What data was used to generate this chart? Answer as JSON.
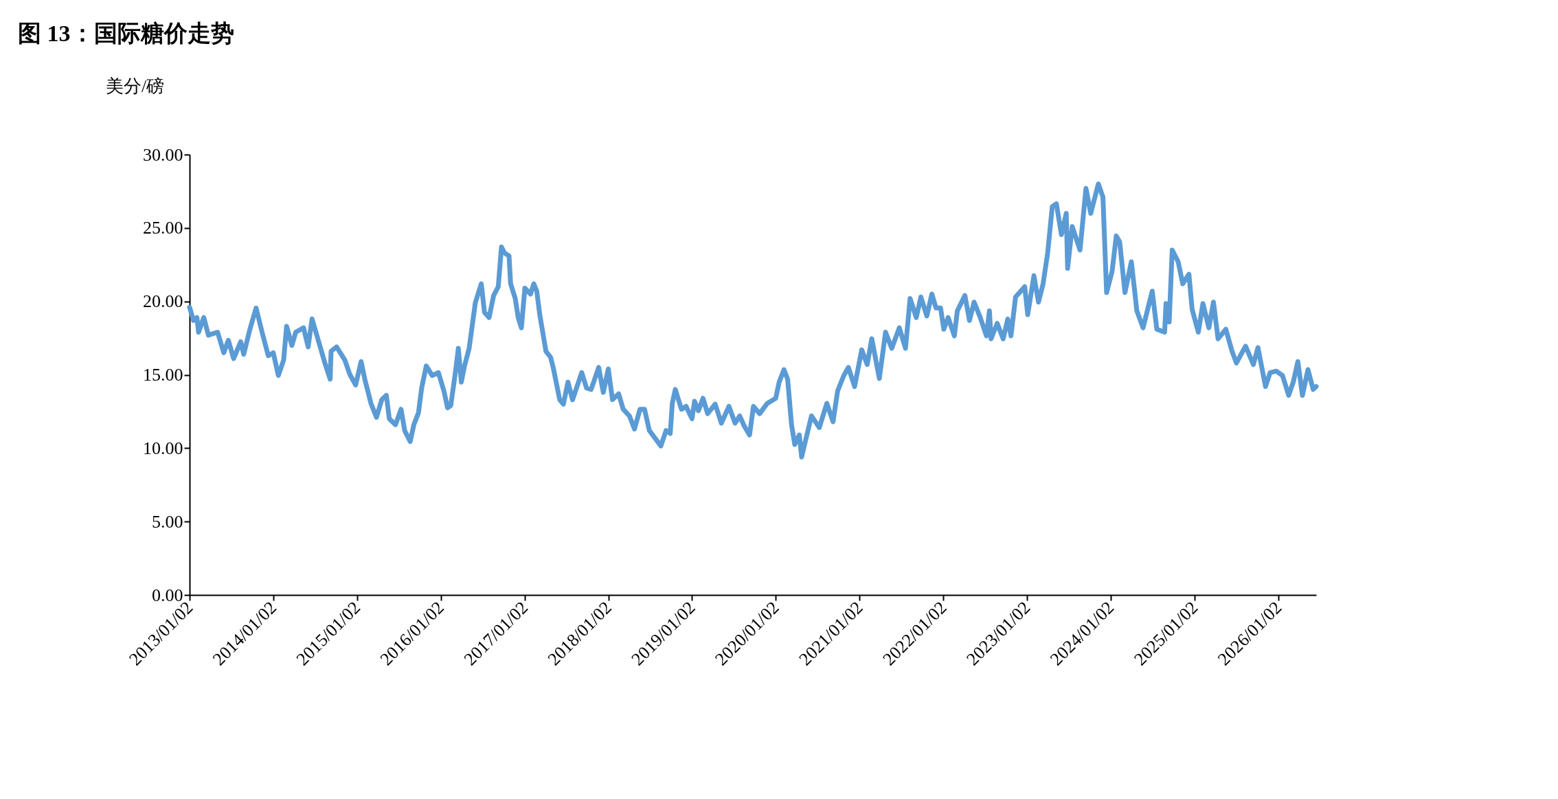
{
  "chart_data": {
    "type": "line",
    "title": "图 13：国际糖价走势",
    "ylabel": "美分/磅",
    "x": [
      "2013-01-02",
      "2013-01-19",
      "2013-02-03",
      "2013-02-10",
      "2013-03-05",
      "2013-03-25",
      "2013-05-04",
      "2013-05-31",
      "2013-06-20",
      "2013-07-13",
      "2013-08-13",
      "2013-08-26",
      "2013-09-22",
      "2013-10-19",
      "2013-11-14",
      "2013-12-11",
      "2014-01-02",
      "2014-01-24",
      "2014-02-16",
      "2014-03-01",
      "2014-03-24",
      "2014-04-10",
      "2014-05-14",
      "2014-06-03",
      "2014-06-20",
      "2014-07-19",
      "2014-08-15",
      "2014-09-07",
      "2014-09-11",
      "2014-10-05",
      "2014-11-10",
      "2014-12-01",
      "2014-12-27",
      "2015-01-20",
      "2015-02-05",
      "2015-03-04",
      "2015-03-28",
      "2015-04-20",
      "2015-05-10",
      "2015-05-23",
      "2015-06-19",
      "2015-07-13",
      "2015-07-29",
      "2015-08-22",
      "2015-09-07",
      "2015-09-27",
      "2015-10-11",
      "2015-10-31",
      "2015-11-26",
      "2015-12-23",
      "2016-01-16",
      "2016-02-01",
      "2016-02-15",
      "2016-03-06",
      "2016-03-19",
      "2016-04-01",
      "2016-04-15",
      "2016-05-05",
      "2016-06-01",
      "2016-06-27",
      "2016-07-11",
      "2016-07-31",
      "2016-08-20",
      "2016-09-09",
      "2016-09-23",
      "2016-10-06",
      "2016-10-26",
      "2016-11-02",
      "2016-11-22",
      "2016-12-05",
      "2016-12-19",
      "2017-01-03",
      "2017-01-28",
      "2017-02-11",
      "2017-02-24",
      "2017-03-09",
      "2017-03-22",
      "2017-04-05",
      "2017-04-25",
      "2017-05-08",
      "2017-06-04",
      "2017-06-20",
      "2017-07-10",
      "2017-07-30",
      "2017-09-08",
      "2017-09-29",
      "2017-10-19",
      "2017-11-21",
      "2017-12-11",
      "2018-01-02",
      "2018-01-20",
      "2018-02-16",
      "2018-03-08",
      "2018-04-04",
      "2018-04-26",
      "2018-05-20",
      "2018-06-09",
      "2018-06-30",
      "2018-07-26",
      "2018-08-19",
      "2018-09-11",
      "2018-09-29",
      "2018-10-08",
      "2018-10-21",
      "2018-11-17",
      "2018-12-07",
      "2019-01-02",
      "2019-01-13",
      "2019-01-30",
      "2019-02-19",
      "2019-03-11",
      "2019-04-13",
      "2019-05-10",
      "2019-06-12",
      "2019-07-09",
      "2019-07-29",
      "2019-08-18",
      "2019-09-10",
      "2019-09-27",
      "2019-10-24",
      "2019-11-26",
      "2020-01-02",
      "2020-01-17",
      "2020-02-07",
      "2020-02-23",
      "2020-03-11",
      "2020-03-25",
      "2020-04-14",
      "2020-04-24",
      "2020-05-10",
      "2020-06-06",
      "2020-07-10",
      "2020-08-12",
      "2020-09-08",
      "2020-09-28",
      "2020-10-25",
      "2020-11-14",
      "2020-12-11",
      "2021-01-11",
      "2021-02-04",
      "2021-02-24",
      "2021-03-29",
      "2021-04-25",
      "2021-05-22",
      "2021-06-24",
      "2021-07-21",
      "2021-08-10",
      "2021-09-06",
      "2021-09-26",
      "2021-10-22",
      "2021-11-13",
      "2021-12-01",
      "2021-12-21",
      "2022-01-04",
      "2022-01-23",
      "2022-02-19",
      "2022-03-04",
      "2022-04-06",
      "2022-04-26",
      "2022-05-16",
      "2022-06-12",
      "2022-07-09",
      "2022-07-22",
      "2022-07-29",
      "2022-08-25",
      "2022-09-20",
      "2022-10-10",
      "2022-10-24",
      "2022-11-13",
      "2022-12-23",
      "2023-01-05",
      "2023-02-01",
      "2023-02-21",
      "2023-03-13",
      "2023-04-02",
      "2023-04-22",
      "2023-05-10",
      "2023-06-01",
      "2023-06-22",
      "2023-06-28",
      "2023-07-18",
      "2023-08-21",
      "2023-09-16",
      "2023-10-07",
      "2023-11-09",
      "2023-11-29",
      "2023-12-15",
      "2024-01-08",
      "2024-01-26",
      "2024-02-10",
      "2024-03-04",
      "2024-04-01",
      "2024-04-25",
      "2024-05-22",
      "2024-07-01",
      "2024-07-21",
      "2024-08-24",
      "2024-08-30",
      "2024-09-13",
      "2024-09-26",
      "2024-10-22",
      "2024-11-11",
      "2024-12-08",
      "2024-12-22",
      "2025-01-18",
      "2025-02-07",
      "2025-03-05",
      "2025-03-25",
      "2025-04-14",
      "2025-05-18",
      "2025-06-14",
      "2025-07-03",
      "2025-08-12",
      "2025-09-15",
      "2025-10-05",
      "2025-11-07",
      "2025-11-27",
      "2025-12-24",
      "2026-01-20",
      "2026-02-16",
      "2026-03-08",
      "2026-03-28",
      "2026-04-17",
      "2026-05-11",
      "2026-06-03",
      "2026-06-16"
    ],
    "series": [
      {
        "color": "#5b9bd5",
        "values": [
          19.6,
          18.7,
          18.9,
          17.9,
          18.9,
          17.7,
          17.9,
          16.5,
          17.35,
          16.1,
          17.25,
          16.4,
          18.1,
          19.55,
          17.9,
          16.3,
          16.5,
          14.95,
          16.0,
          18.3,
          17.0,
          17.9,
          18.2,
          16.9,
          18.8,
          17.25,
          15.8,
          14.7,
          16.6,
          16.9,
          16.0,
          15.05,
          14.3,
          15.9,
          14.7,
          13.05,
          12.1,
          13.3,
          13.6,
          12.0,
          11.6,
          12.65,
          11.2,
          10.45,
          11.6,
          12.4,
          14.1,
          15.6,
          14.95,
          15.15,
          13.9,
          12.75,
          12.9,
          15.15,
          16.8,
          14.5,
          15.6,
          16.8,
          19.9,
          21.2,
          19.25,
          18.9,
          20.4,
          21.0,
          23.7,
          23.3,
          23.1,
          21.2,
          20.2,
          18.9,
          18.2,
          20.9,
          20.5,
          21.2,
          20.7,
          19.1,
          17.9,
          16.6,
          16.2,
          15.4,
          13.3,
          13.0,
          14.5,
          13.3,
          15.15,
          14.1,
          14.0,
          15.5,
          13.8,
          15.4,
          13.3,
          13.7,
          12.65,
          12.2,
          11.3,
          12.65,
          12.65,
          11.2,
          10.65,
          10.15,
          11.2,
          11.0,
          13.05,
          14.0,
          12.65,
          12.85,
          12.0,
          13.2,
          12.55,
          13.4,
          12.35,
          13.0,
          11.7,
          12.85,
          11.7,
          12.2,
          11.5,
          10.9,
          12.85,
          12.35,
          13.05,
          13.4,
          14.5,
          15.35,
          14.7,
          11.6,
          10.25,
          10.9,
          9.4,
          10.45,
          12.2,
          11.4,
          13.05,
          11.8,
          13.9,
          14.95,
          15.5,
          14.2,
          16.7,
          15.7,
          17.45,
          14.75,
          17.9,
          16.8,
          18.2,
          16.8,
          20.2,
          18.9,
          20.3,
          19.0,
          20.5,
          19.55,
          19.55,
          18.1,
          18.9,
          17.65,
          19.35,
          20.4,
          18.7,
          19.95,
          18.9,
          17.65,
          19.35,
          17.45,
          18.5,
          17.45,
          18.8,
          17.65,
          20.3,
          21.0,
          19.1,
          21.75,
          19.95,
          21.2,
          23.3,
          26.45,
          26.65,
          24.55,
          26.0,
          22.25,
          25.1,
          23.5,
          27.7,
          26.0,
          28.0,
          27.1,
          20.6,
          22.05,
          24.45,
          24.05,
          20.6,
          22.7,
          19.35,
          18.2,
          20.7,
          18.1,
          17.9,
          19.85,
          18.6,
          23.5,
          22.7,
          21.2,
          21.85,
          19.45,
          17.9,
          19.85,
          18.2,
          19.95,
          17.45,
          18.1,
          16.6,
          15.8,
          16.95,
          15.7,
          16.85,
          14.2,
          15.15,
          15.25,
          14.95,
          13.6,
          14.5,
          15.9,
          13.6,
          15.35,
          14.0,
          14.2
        ]
      }
    ],
    "xlim": [
      "2013-01-02",
      "2026-06-16"
    ],
    "xticks": [
      {
        "value": "2013-01-02",
        "label": "2013/01/02"
      },
      {
        "value": "2014-01-02",
        "label": "2014/01/02"
      },
      {
        "value": "2015-01-02",
        "label": "2015/01/02"
      },
      {
        "value": "2016-01-02",
        "label": "2016/01/02"
      },
      {
        "value": "2017-01-02",
        "label": "2017/01/02"
      },
      {
        "value": "2018-01-02",
        "label": "2018/01/02"
      },
      {
        "value": "2019-01-02",
        "label": "2019/01/02"
      },
      {
        "value": "2020-01-02",
        "label": "2020/01/02"
      },
      {
        "value": "2021-01-02",
        "label": "2021/01/02"
      },
      {
        "value": "2022-01-02",
        "label": "2022/01/02"
      },
      {
        "value": "2023-01-02",
        "label": "2023/01/02"
      },
      {
        "value": "2024-01-02",
        "label": "2024/01/02"
      },
      {
        "value": "2025-01-02",
        "label": "2025/01/02"
      },
      {
        "value": "2026-01-02",
        "label": "2026/01/02"
      }
    ],
    "ylim": [
      0,
      30
    ],
    "yticks": [
      {
        "value": 0,
        "label": "0.00"
      },
      {
        "value": 5,
        "label": "5.00"
      },
      {
        "value": 10,
        "label": "10.00"
      },
      {
        "value": 15,
        "label": "15.00"
      },
      {
        "value": 20,
        "label": "20.00"
      },
      {
        "value": 25,
        "label": "25.00"
      },
      {
        "value": 30,
        "label": "30.00"
      }
    ],
    "grid": false,
    "legend": false,
    "marker": "none",
    "line_style": "solid"
  }
}
